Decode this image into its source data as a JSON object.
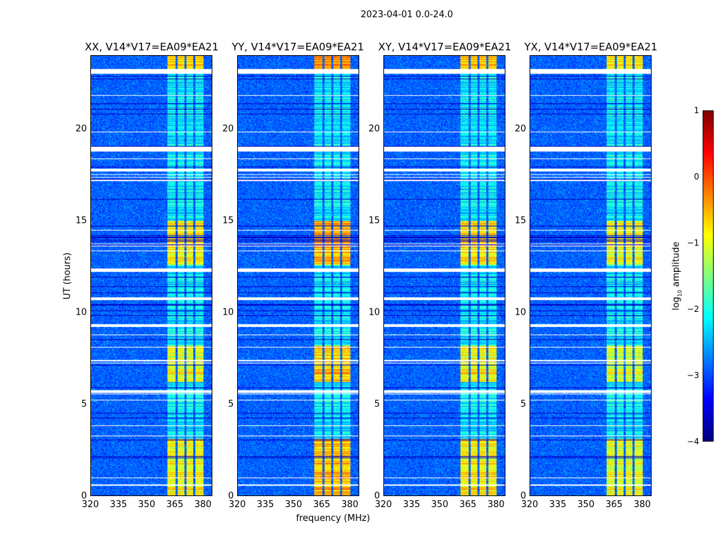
{
  "figure_title": "2023-04-01 0.0-24.0",
  "chart_data": {
    "type": "heatmap",
    "title": "2023-04-01 0.0-24.0",
    "xlabel": "frequency (MHz)",
    "ylabel": "UT (hours)",
    "xlim": [
      320,
      385
    ],
    "ylim": [
      0,
      24
    ],
    "xticks": [
      "320",
      "335",
      "350",
      "365",
      "380"
    ],
    "yticks": [
      "0",
      "5",
      "10",
      "15",
      "20"
    ],
    "grid": false,
    "colorbar": {
      "label": "log",
      "label_sub": "10",
      "label_rest": " amplitude",
      "range": [
        -4,
        1
      ],
      "ticks": [
        "1",
        "0",
        "−1",
        "−2",
        "−3",
        "−4"
      ],
      "colormap": "jet"
    },
    "subbands_mhz": [
      [
        361,
        365.4
      ],
      [
        366.5,
        370.1
      ],
      [
        371.2,
        374.8
      ],
      [
        375.9,
        380.3
      ]
    ],
    "background_log_amp": -2.9,
    "active_periods": [
      {
        "t0": 0.0,
        "t1": 3.1,
        "level": -0.9
      },
      {
        "t0": 6.2,
        "t1": 8.2,
        "level": -1.0
      },
      {
        "t0": 12.6,
        "t1": 15.0,
        "level": -0.8
      },
      {
        "t0": 23.2,
        "t1": 24.0,
        "level": -0.7
      }
    ],
    "flagged_hours": [
      [
        23.05,
        23.3
      ],
      [
        18.8,
        19.05
      ],
      [
        17.72,
        17.85
      ],
      [
        12.22,
        12.4
      ],
      [
        10.7,
        10.82
      ],
      [
        9.22,
        9.36
      ],
      [
        5.62,
        5.78
      ],
      [
        0.55,
        0.6
      ]
    ],
    "panels": [
      {
        "title": "XX, V14*V17=EA09*EA21",
        "gain": 0.0
      },
      {
        "title": "YY, V14*V17=EA09*EA21",
        "gain": 0.35
      },
      {
        "title": "XY, V14*V17=EA09*EA21",
        "gain": 0.1
      },
      {
        "title": "YX, V14*V17=EA09*EA21",
        "gain": -0.1
      }
    ]
  }
}
